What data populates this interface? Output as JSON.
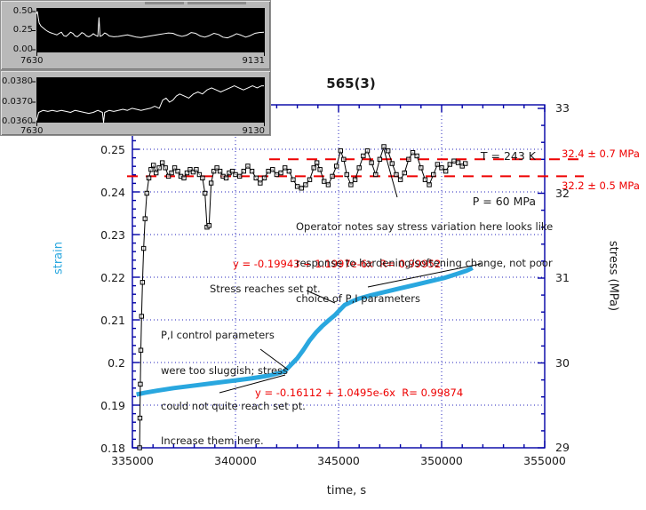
{
  "colors": {
    "frame_blue": "#0000a6",
    "grid_blue": "#2222bb",
    "red": "#ee0000",
    "cyan": "#29a7df",
    "black": "#000000",
    "panel_gray": "#b9b9b9",
    "trace_white": "#ffffff"
  },
  "chart_data": [
    {
      "id": "inset-top",
      "type": "line",
      "y_tick_labels": [
        "0.50",
        "0.25",
        "0.00"
      ],
      "x_tick_labels": [
        "7630",
        "9131"
      ],
      "y_ticks": [
        0.5,
        0.25,
        0.0
      ],
      "x_range": [
        7630,
        9131
      ],
      "background": "black",
      "trace": [
        [
          0,
          0.47
        ],
        [
          0.004,
          0.5
        ],
        [
          0.008,
          0.42
        ],
        [
          0.012,
          0.35
        ],
        [
          0.02,
          0.31
        ],
        [
          0.03,
          0.285
        ],
        [
          0.04,
          0.26
        ],
        [
          0.05,
          0.24
        ],
        [
          0.06,
          0.225
        ],
        [
          0.075,
          0.21
        ],
        [
          0.09,
          0.195
        ],
        [
          0.1,
          0.215
        ],
        [
          0.11,
          0.23
        ],
        [
          0.12,
          0.185
        ],
        [
          0.13,
          0.175
        ],
        [
          0.14,
          0.2
        ],
        [
          0.15,
          0.23
        ],
        [
          0.16,
          0.215
        ],
        [
          0.17,
          0.18
        ],
        [
          0.18,
          0.17
        ],
        [
          0.19,
          0.195
        ],
        [
          0.2,
          0.225
        ],
        [
          0.21,
          0.21
        ],
        [
          0.22,
          0.18
        ],
        [
          0.23,
          0.17
        ],
        [
          0.24,
          0.185
        ],
        [
          0.25,
          0.21
        ],
        [
          0.26,
          0.19
        ],
        [
          0.27,
          0.175
        ],
        [
          0.275,
          0.42
        ],
        [
          0.28,
          0.175
        ],
        [
          0.29,
          0.19
        ],
        [
          0.3,
          0.22
        ],
        [
          0.31,
          0.205
        ],
        [
          0.32,
          0.18
        ],
        [
          0.34,
          0.17
        ],
        [
          0.36,
          0.175
        ],
        [
          0.38,
          0.185
        ],
        [
          0.4,
          0.195
        ],
        [
          0.42,
          0.18
        ],
        [
          0.44,
          0.165
        ],
        [
          0.46,
          0.16
        ],
        [
          0.48,
          0.17
        ],
        [
          0.5,
          0.18
        ],
        [
          0.52,
          0.19
        ],
        [
          0.54,
          0.2
        ],
        [
          0.56,
          0.21
        ],
        [
          0.58,
          0.22
        ],
        [
          0.6,
          0.215
        ],
        [
          0.62,
          0.19
        ],
        [
          0.64,
          0.175
        ],
        [
          0.66,
          0.19
        ],
        [
          0.68,
          0.225
        ],
        [
          0.7,
          0.215
        ],
        [
          0.72,
          0.18
        ],
        [
          0.74,
          0.165
        ],
        [
          0.76,
          0.185
        ],
        [
          0.78,
          0.215
        ],
        [
          0.8,
          0.2
        ],
        [
          0.82,
          0.165
        ],
        [
          0.84,
          0.155
        ],
        [
          0.86,
          0.18
        ],
        [
          0.88,
          0.21
        ],
        [
          0.9,
          0.19
        ],
        [
          0.92,
          0.165
        ],
        [
          0.94,
          0.185
        ],
        [
          0.96,
          0.215
        ],
        [
          0.98,
          0.225
        ],
        [
          1,
          0.23
        ]
      ]
    },
    {
      "id": "inset-bottom",
      "type": "line",
      "y_tick_labels": [
        "0.0380",
        "0.0370",
        "0.0360"
      ],
      "x_tick_labels": [
        "7630",
        "9130"
      ],
      "y_ticks": [
        0.038,
        0.037,
        0.036
      ],
      "x_range": [
        7630,
        9130
      ],
      "background": "black",
      "trace": [
        [
          0,
          0.0361
        ],
        [
          0.01,
          0.0365
        ],
        [
          0.03,
          0.0366
        ],
        [
          0.05,
          0.03655
        ],
        [
          0.07,
          0.0366
        ],
        [
          0.09,
          0.03655
        ],
        [
          0.11,
          0.0366
        ],
        [
          0.13,
          0.03655
        ],
        [
          0.15,
          0.0365
        ],
        [
          0.17,
          0.0366
        ],
        [
          0.19,
          0.03655
        ],
        [
          0.21,
          0.0365
        ],
        [
          0.23,
          0.03645
        ],
        [
          0.25,
          0.0365
        ],
        [
          0.27,
          0.0366
        ],
        [
          0.29,
          0.0365
        ],
        [
          0.295,
          0.036
        ],
        [
          0.3,
          0.0365
        ],
        [
          0.32,
          0.0366
        ],
        [
          0.34,
          0.03655
        ],
        [
          0.36,
          0.0366
        ],
        [
          0.38,
          0.03665
        ],
        [
          0.4,
          0.0366
        ],
        [
          0.42,
          0.0367
        ],
        [
          0.44,
          0.03665
        ],
        [
          0.46,
          0.0366
        ],
        [
          0.48,
          0.03665
        ],
        [
          0.5,
          0.0367
        ],
        [
          0.52,
          0.0368
        ],
        [
          0.54,
          0.0367
        ],
        [
          0.555,
          0.0371
        ],
        [
          0.57,
          0.0372
        ],
        [
          0.585,
          0.037
        ],
        [
          0.6,
          0.0371
        ],
        [
          0.615,
          0.0373
        ],
        [
          0.63,
          0.0374
        ],
        [
          0.65,
          0.0373
        ],
        [
          0.67,
          0.0372
        ],
        [
          0.69,
          0.0374
        ],
        [
          0.71,
          0.0375
        ],
        [
          0.73,
          0.0374
        ],
        [
          0.75,
          0.0376
        ],
        [
          0.77,
          0.0377
        ],
        [
          0.79,
          0.0376
        ],
        [
          0.81,
          0.0375
        ],
        [
          0.83,
          0.0376
        ],
        [
          0.85,
          0.0377
        ],
        [
          0.87,
          0.0378
        ],
        [
          0.89,
          0.0377
        ],
        [
          0.91,
          0.0376
        ],
        [
          0.93,
          0.0377
        ],
        [
          0.95,
          0.0378
        ],
        [
          0.97,
          0.0377
        ],
        [
          0.99,
          0.0378
        ],
        [
          1,
          0.0378
        ]
      ]
    },
    {
      "id": "main",
      "type": "line",
      "title": "565(3)",
      "xlabel": "time, s",
      "ylabel_left": "strain",
      "ylabel_right": "stress (MPa)",
      "x_range": [
        335000,
        355000
      ],
      "strain_range": [
        0.18,
        0.25
      ],
      "stress_range": [
        29,
        33
      ],
      "grid": "dotted blue at major ticks",
      "x_ticks": [
        [
          335000,
          "335000"
        ],
        [
          340000,
          "340000"
        ],
        [
          345000,
          "345000"
        ],
        [
          350000,
          "350000"
        ],
        [
          355000,
          "355000"
        ]
      ],
      "strain_ticks": [
        [
          0.18,
          "0.18"
        ],
        [
          0.19,
          "0.19"
        ],
        [
          0.2,
          "0.2"
        ],
        [
          0.21,
          "0.21"
        ],
        [
          0.22,
          "0.22"
        ],
        [
          0.23,
          "0.23"
        ],
        [
          0.24,
          "0.24"
        ],
        [
          0.25,
          "0.25"
        ]
      ],
      "stress_ticks": [
        [
          29,
          "29"
        ],
        [
          30,
          "30"
        ],
        [
          31,
          "31"
        ],
        [
          32,
          "32"
        ],
        [
          33,
          "33"
        ]
      ],
      "conditions": [
        "T = 243 K",
        "P = 60 MPa"
      ],
      "ref_lines": [
        {
          "stress_mpa": 32.4,
          "label": "32.4 ± 0.7 MPa"
        },
        {
          "stress_mpa": 32.2,
          "label": "32.2 ± 0.5 MPa"
        }
      ],
      "fits": [
        {
          "equation": "y = -0.19943 + 1.1997e-6x  R= 0.99952"
        },
        {
          "equation": "y = -0.16112 + 1.0495e-6x  R= 0.99874"
        }
      ],
      "annotations": {
        "operator_lines": [
          "Operator notes say stress variation here looks like",
          "response to hardening/softening change, not poor",
          "choice of P,I parameters"
        ],
        "sluggish_lines": [
          "P,I control parameters",
          "were too sluggish; stress",
          "could not quite reach set pt.",
          "Increase them here."
        ],
        "set_point_label": "Stress reaches set pt."
      },
      "series": [
        {
          "name": "stress",
          "axis": "right",
          "marker": "open-square",
          "points": [
            [
              335350,
              29.0
            ],
            [
              335365,
              29.35
            ],
            [
              335385,
              29.75
            ],
            [
              335410,
              30.15
            ],
            [
              335445,
              30.55
            ],
            [
              335490,
              30.95
            ],
            [
              335545,
              31.35
            ],
            [
              335615,
              31.7
            ],
            [
              335700,
              32.0
            ],
            [
              335800,
              32.18
            ],
            [
              335900,
              32.28
            ],
            [
              336020,
              32.33
            ],
            [
              336150,
              32.24
            ],
            [
              336300,
              32.3
            ],
            [
              336450,
              32.36
            ],
            [
              336600,
              32.3
            ],
            [
              336750,
              32.2
            ],
            [
              336900,
              32.24
            ],
            [
              337050,
              32.3
            ],
            [
              337200,
              32.26
            ],
            [
              337350,
              32.2
            ],
            [
              337500,
              32.18
            ],
            [
              337650,
              32.24
            ],
            [
              337800,
              32.28
            ],
            [
              337950,
              32.25
            ],
            [
              338100,
              32.28
            ],
            [
              338250,
              32.22
            ],
            [
              338400,
              32.18
            ],
            [
              338520,
              32.0
            ],
            [
              338620,
              31.6
            ],
            [
              338720,
              31.62
            ],
            [
              338820,
              32.12
            ],
            [
              338950,
              32.26
            ],
            [
              339100,
              32.3
            ],
            [
              339250,
              32.26
            ],
            [
              339400,
              32.2
            ],
            [
              339550,
              32.18
            ],
            [
              339700,
              32.24
            ],
            [
              339850,
              32.26
            ],
            [
              340000,
              32.22
            ],
            [
              340200,
              32.2
            ],
            [
              340400,
              32.26
            ],
            [
              340600,
              32.32
            ],
            [
              340800,
              32.26
            ],
            [
              341000,
              32.18
            ],
            [
              341200,
              32.12
            ],
            [
              341400,
              32.18
            ],
            [
              341600,
              32.26
            ],
            [
              341800,
              32.28
            ],
            [
              342000,
              32.22
            ],
            [
              342200,
              32.24
            ],
            [
              342400,
              32.3
            ],
            [
              342600,
              32.26
            ],
            [
              342800,
              32.16
            ],
            [
              343000,
              32.08
            ],
            [
              343200,
              32.06
            ],
            [
              343400,
              32.1
            ],
            [
              343600,
              32.16
            ],
            [
              343800,
              32.3
            ],
            [
              343950,
              32.36
            ],
            [
              344100,
              32.28
            ],
            [
              344300,
              32.14
            ],
            [
              344500,
              32.1
            ],
            [
              344700,
              32.2
            ],
            [
              344900,
              32.32
            ],
            [
              345100,
              32.5
            ],
            [
              345250,
              32.4
            ],
            [
              345400,
              32.22
            ],
            [
              345600,
              32.1
            ],
            [
              345800,
              32.16
            ],
            [
              346000,
              32.3
            ],
            [
              346200,
              32.44
            ],
            [
              346400,
              32.5
            ],
            [
              346600,
              32.36
            ],
            [
              346800,
              32.22
            ],
            [
              347000,
              32.4
            ],
            [
              347200,
              32.55
            ],
            [
              347400,
              32.5
            ],
            [
              347600,
              32.35
            ],
            [
              347800,
              32.22
            ],
            [
              348000,
              32.16
            ],
            [
              348200,
              32.24
            ],
            [
              348400,
              32.4
            ],
            [
              348600,
              32.48
            ],
            [
              348800,
              32.44
            ],
            [
              349000,
              32.3
            ],
            [
              349200,
              32.16
            ],
            [
              349400,
              32.1
            ],
            [
              349600,
              32.22
            ],
            [
              349800,
              32.34
            ],
            [
              350000,
              32.3
            ],
            [
              350200,
              32.26
            ],
            [
              350400,
              32.34
            ],
            [
              350600,
              32.38
            ],
            [
              350800,
              32.36
            ],
            [
              351000,
              32.32
            ],
            [
              351150,
              32.35
            ]
          ]
        },
        {
          "name": "strain",
          "axis": "left",
          "marker": "none",
          "points": [
            [
              335200,
              0.1925
            ],
            [
              335600,
              0.1929
            ],
            [
              336200,
              0.1934
            ],
            [
              337000,
              0.194
            ],
            [
              338000,
              0.1946
            ],
            [
              339000,
              0.1952
            ],
            [
              340000,
              0.1958
            ],
            [
              340800,
              0.1963
            ],
            [
              341600,
              0.1969
            ],
            [
              342100,
              0.1975
            ],
            [
              342400,
              0.198
            ],
            [
              342700,
              0.1995
            ],
            [
              343000,
              0.201
            ],
            [
              343300,
              0.203
            ],
            [
              343600,
              0.2052
            ],
            [
              343900,
              0.207
            ],
            [
              344200,
              0.2085
            ],
            [
              344500,
              0.2098
            ],
            [
              344800,
              0.211
            ],
            [
              345100,
              0.2125
            ],
            [
              345300,
              0.2135
            ],
            [
              345600,
              0.2142
            ],
            [
              346000,
              0.215
            ],
            [
              346600,
              0.2158
            ],
            [
              347300,
              0.2166
            ],
            [
              348000,
              0.2174
            ],
            [
              348700,
              0.2182
            ],
            [
              349400,
              0.219
            ],
            [
              350100,
              0.2198
            ],
            [
              350700,
              0.2207
            ],
            [
              351200,
              0.2215
            ],
            [
              351500,
              0.2222
            ]
          ]
        }
      ]
    }
  ]
}
